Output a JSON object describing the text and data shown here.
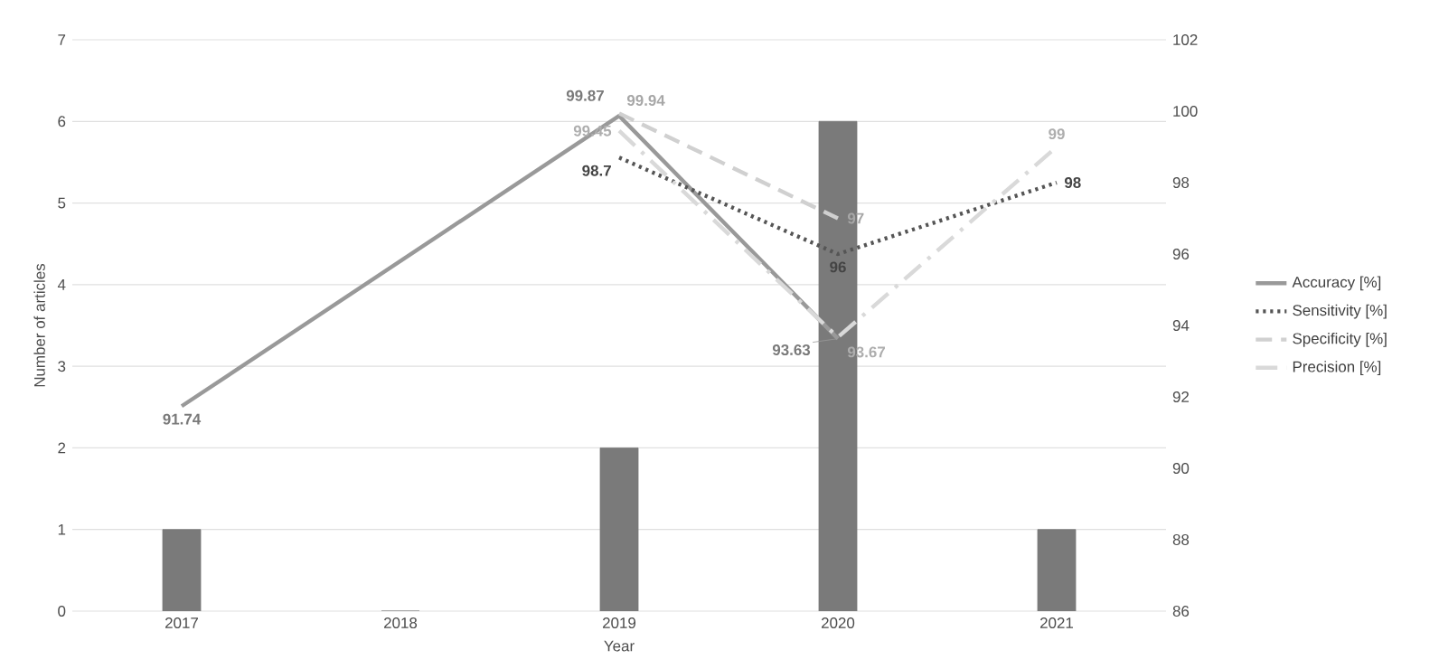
{
  "chart_data": {
    "type": "bar",
    "xlabel": "Year",
    "ylabel": "Number of articles",
    "categories": [
      "2017",
      "2018",
      "2019",
      "2020",
      "2021"
    ],
    "ylim": [
      0,
      7
    ],
    "yticks": [
      0,
      1,
      2,
      3,
      4,
      5,
      6,
      7
    ],
    "y2lim": [
      86,
      102
    ],
    "y2ticks": [
      86,
      88,
      90,
      92,
      94,
      96,
      98,
      100,
      102
    ],
    "grid": "y",
    "legend": "right",
    "series": [
      {
        "type": "bar",
        "color": "#7a7a7a",
        "values": [
          1,
          0,
          2,
          6,
          1
        ]
      },
      {
        "name": "Accuracy [%]",
        "type": "line",
        "axis": "y2",
        "color": "#999999",
        "line_style": "solid",
        "values": [
          91.74,
          null,
          99.87,
          93.63,
          null
        ],
        "value_labels": [
          "91.74",
          null,
          "99.87",
          "93.63",
          null
        ]
      },
      {
        "name": "Sensitivity [%]",
        "type": "line",
        "axis": "y2",
        "color": "#555555",
        "line_style": "dotted",
        "values": [
          null,
          null,
          98.7,
          96,
          98
        ],
        "value_labels": [
          null,
          null,
          "98.7",
          "96",
          "98"
        ]
      },
      {
        "name": "Specificity [%]",
        "type": "line",
        "axis": "y2",
        "color": "#d0d0d0",
        "line_style": "dashed",
        "values": [
          null,
          null,
          99.94,
          97,
          null
        ],
        "value_labels": [
          null,
          null,
          "99.94",
          "97",
          null
        ]
      },
      {
        "name": "Precision [%]",
        "type": "line",
        "axis": "y2",
        "color": "#d9d9d9",
        "line_style": "dashdot",
        "values": [
          null,
          null,
          99.45,
          93.67,
          99
        ],
        "value_labels": [
          null,
          null,
          "99.45",
          "93.67",
          "99"
        ]
      }
    ]
  }
}
